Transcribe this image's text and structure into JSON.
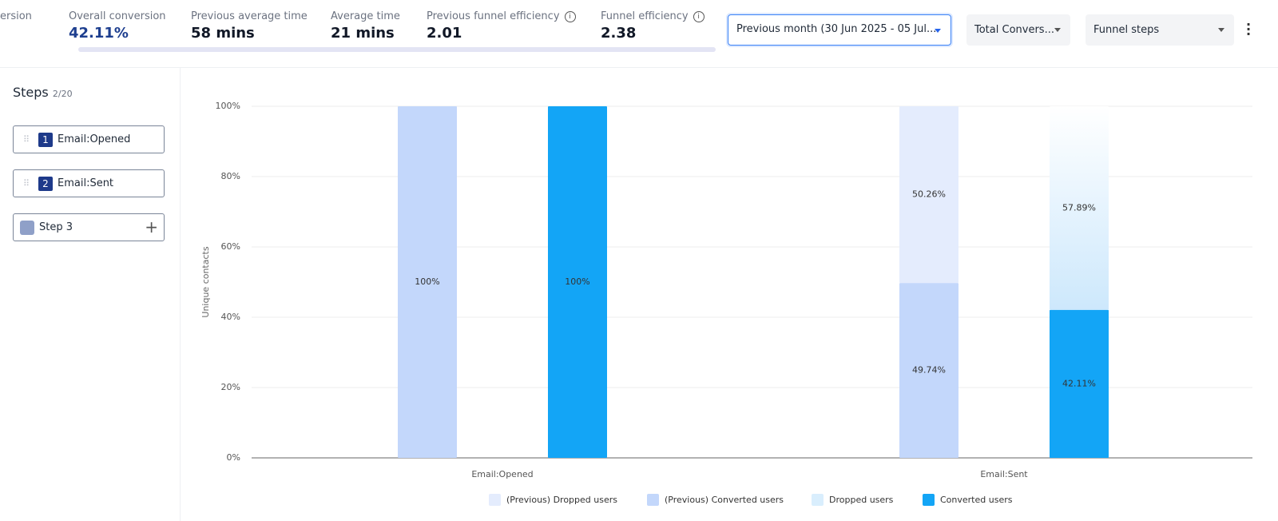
{
  "metrics": [
    {
      "label": "ersion"
    },
    {
      "label": "Overall conversion",
      "value": "42.11%"
    },
    {
      "label": "Previous average time",
      "value": "58 mins"
    },
    {
      "label": "Average time",
      "value": "21 mins"
    },
    {
      "label": "Previous funnel efficiency",
      "value": "2.01"
    },
    {
      "label": "Funnel efficiency",
      "value": "2.38"
    }
  ],
  "dropdowns": [
    "Previous month (30 Jun 2025 - 05 Jul...",
    "Total Convers...",
    "Funnel steps"
  ],
  "steps": {
    "title": "Steps",
    "count": "2/20",
    "items": [
      {
        "number": "1",
        "label": "Email:Opened"
      },
      {
        "number": "2",
        "label": "Email:Sent"
      },
      {
        "label": "Step 3"
      }
    ]
  },
  "chart_data": {
    "type": "stacked_bar",
    "y_label": "Unique contacts",
    "categories": [
      "Email:Opened",
      "Email:Sent"
    ],
    "series": [
      {
        "name": "(Previous) Converted users",
        "color": "#c3d7fb",
        "stack": "previous",
        "values": [
          100,
          49.74
        ],
        "value_labels": [
          "100%",
          "49.74%"
        ]
      },
      {
        "name": "(Previous) Dropped users",
        "color": "#e4ecfd",
        "stack": "previous",
        "values": [
          0,
          50.26
        ],
        "value_labels": [
          null,
          "50.26%"
        ]
      },
      {
        "name": "Converted users",
        "color": "#13a5f6",
        "stack": "current",
        "values": [
          100,
          42.11
        ],
        "value_labels": [
          "100%",
          "42.11%"
        ]
      },
      {
        "name": "Dropped users",
        "color": "#d9eefd",
        "stack": "current",
        "values": [
          0,
          57.89
        ],
        "value_labels": [
          null,
          "57.89%"
        ]
      }
    ],
    "ylim": [
      0,
      100
    ],
    "yticks": [
      {
        "value": 0,
        "label": "0%"
      },
      {
        "value": 20,
        "label": "20%"
      },
      {
        "value": 40,
        "label": "40%"
      },
      {
        "value": 60,
        "label": "60%"
      },
      {
        "value": 80,
        "label": "80%"
      },
      {
        "value": 100,
        "label": "100%"
      }
    ],
    "grid": true
  }
}
